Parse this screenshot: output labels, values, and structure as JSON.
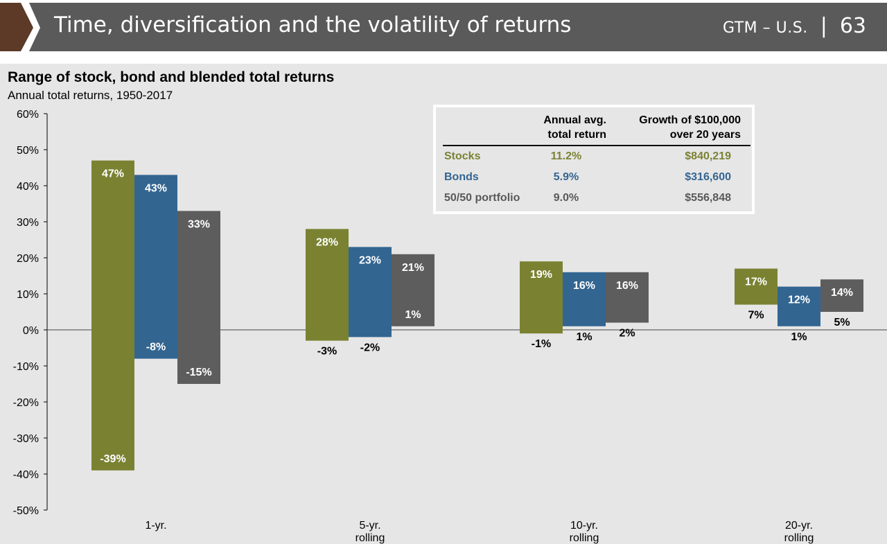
{
  "header": {
    "title": "Time, diversification and the volatility of returns",
    "label": "GTM – U.S.",
    "page": "63",
    "colors": {
      "bar": "#5a5a5a",
      "arrow": "#5c3a27"
    }
  },
  "chart": {
    "title": "Range of stock, bond and blended total returns",
    "subtitle": "Annual total returns, 1950-2017"
  },
  "summary_table": {
    "col1_header": "Annual avg.\ntotal return",
    "col2_header": "Growth of $100,000\nover 20 years",
    "rows": [
      {
        "label": "Stocks",
        "avg": "11.2%",
        "growth": "$840,219",
        "color": "#7a8232"
      },
      {
        "label": "Bonds",
        "avg": "5.9%",
        "growth": "$316,600",
        "color": "#336591"
      },
      {
        "label": "50/50 portfolio",
        "avg": "9.0%",
        "growth": "$556,848",
        "color": "#595959"
      }
    ]
  },
  "chart_data": {
    "type": "bar",
    "subtype": "floating-range",
    "title": "Range of stock, bond and blended total returns",
    "subtitle": "Annual total returns, 1950-2017",
    "categories": [
      "1-yr.",
      "5-yr.\nrolling",
      "10-yr.\nrolling",
      "20-yr.\nrolling"
    ],
    "series": [
      {
        "color": "#7a8232",
        "max": [
          47,
          28,
          19,
          17
        ],
        "min": [
          -39,
          -3,
          -1,
          7
        ],
        "max_labels": [
          "47%",
          "28%",
          "19%",
          "17%"
        ],
        "min_labels": [
          "-39%",
          "-3%",
          "-1%",
          "7%"
        ]
      },
      {
        "color": "#336591",
        "max": [
          43,
          23,
          16,
          12
        ],
        "min": [
          -8,
          -2,
          1,
          1
        ],
        "max_labels": [
          "43%",
          "23%",
          "16%",
          "12%"
        ],
        "min_labels": [
          "-8%",
          "-2%",
          "1%",
          "1%"
        ]
      },
      {
        "color": "#5d5d5d",
        "max": [
          33,
          21,
          16,
          14
        ],
        "min": [
          -15,
          1,
          2,
          5
        ],
        "max_labels": [
          "33%",
          "21%",
          "16%",
          "14%"
        ],
        "min_labels": [
          "-15%",
          "1%",
          "2%",
          "5%"
        ]
      }
    ],
    "ylim": [
      -50,
      60
    ],
    "yticks": [
      60,
      50,
      40,
      30,
      20,
      10,
      0,
      -10,
      -20,
      -30,
      -40,
      -50
    ],
    "ytick_labels": [
      "60%",
      "50%",
      "40%",
      "30%",
      "20%",
      "10%",
      "0%",
      "-10%",
      "-20%",
      "-30%",
      "-40%",
      "-50%"
    ],
    "grid": false
  }
}
